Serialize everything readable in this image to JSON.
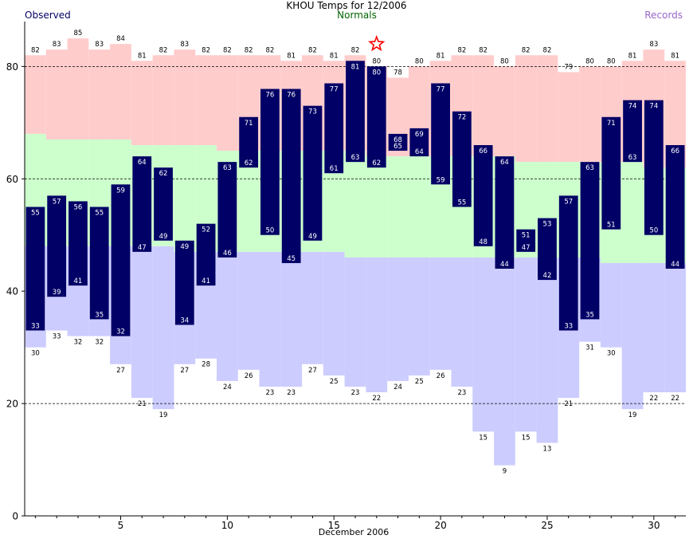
{
  "colors": {
    "observed_bar": "#000066",
    "observed_text": "#000066",
    "normals_text": "#006600",
    "records_text": "#9966cc",
    "record_high_band": "#ffcccc",
    "normal_band": "#ccffcc",
    "record_low_band": "#ccccff",
    "star": "#ff0000"
  },
  "chart_data": {
    "type": "bar",
    "title": "KHOU Temps for 12/2006",
    "xlabel": "December 2006",
    "ylabel": "",
    "legend": {
      "observed": "Observed",
      "normals": "Normals",
      "records": "Records"
    },
    "ylim": [
      0,
      88
    ],
    "xlim": [
      0.5,
      31.5
    ],
    "yticks": [
      0,
      20,
      40,
      60,
      80
    ],
    "gridlines_y": [
      20,
      60,
      80
    ],
    "xticks": [
      5,
      10,
      15,
      20,
      25,
      30
    ],
    "days": [
      1,
      2,
      3,
      4,
      5,
      6,
      7,
      8,
      9,
      10,
      11,
      12,
      13,
      14,
      15,
      16,
      17,
      18,
      19,
      20,
      21,
      22,
      23,
      24,
      25,
      26,
      27,
      28,
      29,
      30,
      31
    ],
    "observed_high": [
      55,
      57,
      56,
      55,
      59,
      64,
      62,
      49,
      52,
      63,
      71,
      76,
      76,
      73,
      77,
      81,
      80,
      68,
      69,
      77,
      72,
      66,
      64,
      51,
      53,
      57,
      63,
      71,
      74,
      74,
      66
    ],
    "observed_low": [
      33,
      39,
      41,
      35,
      32,
      47,
      49,
      34,
      41,
      46,
      62,
      50,
      45,
      49,
      61,
      63,
      62,
      65,
      64,
      59,
      55,
      48,
      44,
      47,
      42,
      33,
      35,
      51,
      63,
      50,
      44
    ],
    "normal_high": [
      68,
      67,
      67,
      67,
      67,
      66,
      66,
      66,
      66,
      65,
      65,
      65,
      65,
      65,
      65,
      65,
      64,
      64,
      64,
      64,
      64,
      64,
      64,
      63,
      63,
      63,
      63,
      63,
      63,
      62,
      62
    ],
    "normal_low": [
      48,
      48,
      48,
      48,
      48,
      48,
      48,
      47,
      47,
      47,
      47,
      47,
      47,
      47,
      47,
      46,
      46,
      46,
      46,
      46,
      46,
      46,
      46,
      46,
      46,
      46,
      46,
      45,
      45,
      45,
      45
    ],
    "record_high": [
      82,
      83,
      85,
      83,
      84,
      81,
      82,
      83,
      82,
      82,
      82,
      82,
      81,
      82,
      81,
      82,
      80,
      78,
      80,
      81,
      82,
      82,
      80,
      82,
      82,
      79,
      80,
      80,
      81,
      83,
      81
    ],
    "record_low": [
      30,
      33,
      32,
      32,
      27,
      21,
      19,
      27,
      28,
      24,
      26,
      23,
      23,
      27,
      25,
      23,
      22,
      24,
      25,
      26,
      23,
      15,
      9,
      15,
      13,
      21,
      31,
      30,
      19,
      22,
      22
    ],
    "record_set_marker": {
      "day": 17,
      "value": 84,
      "symbol": "star"
    }
  }
}
